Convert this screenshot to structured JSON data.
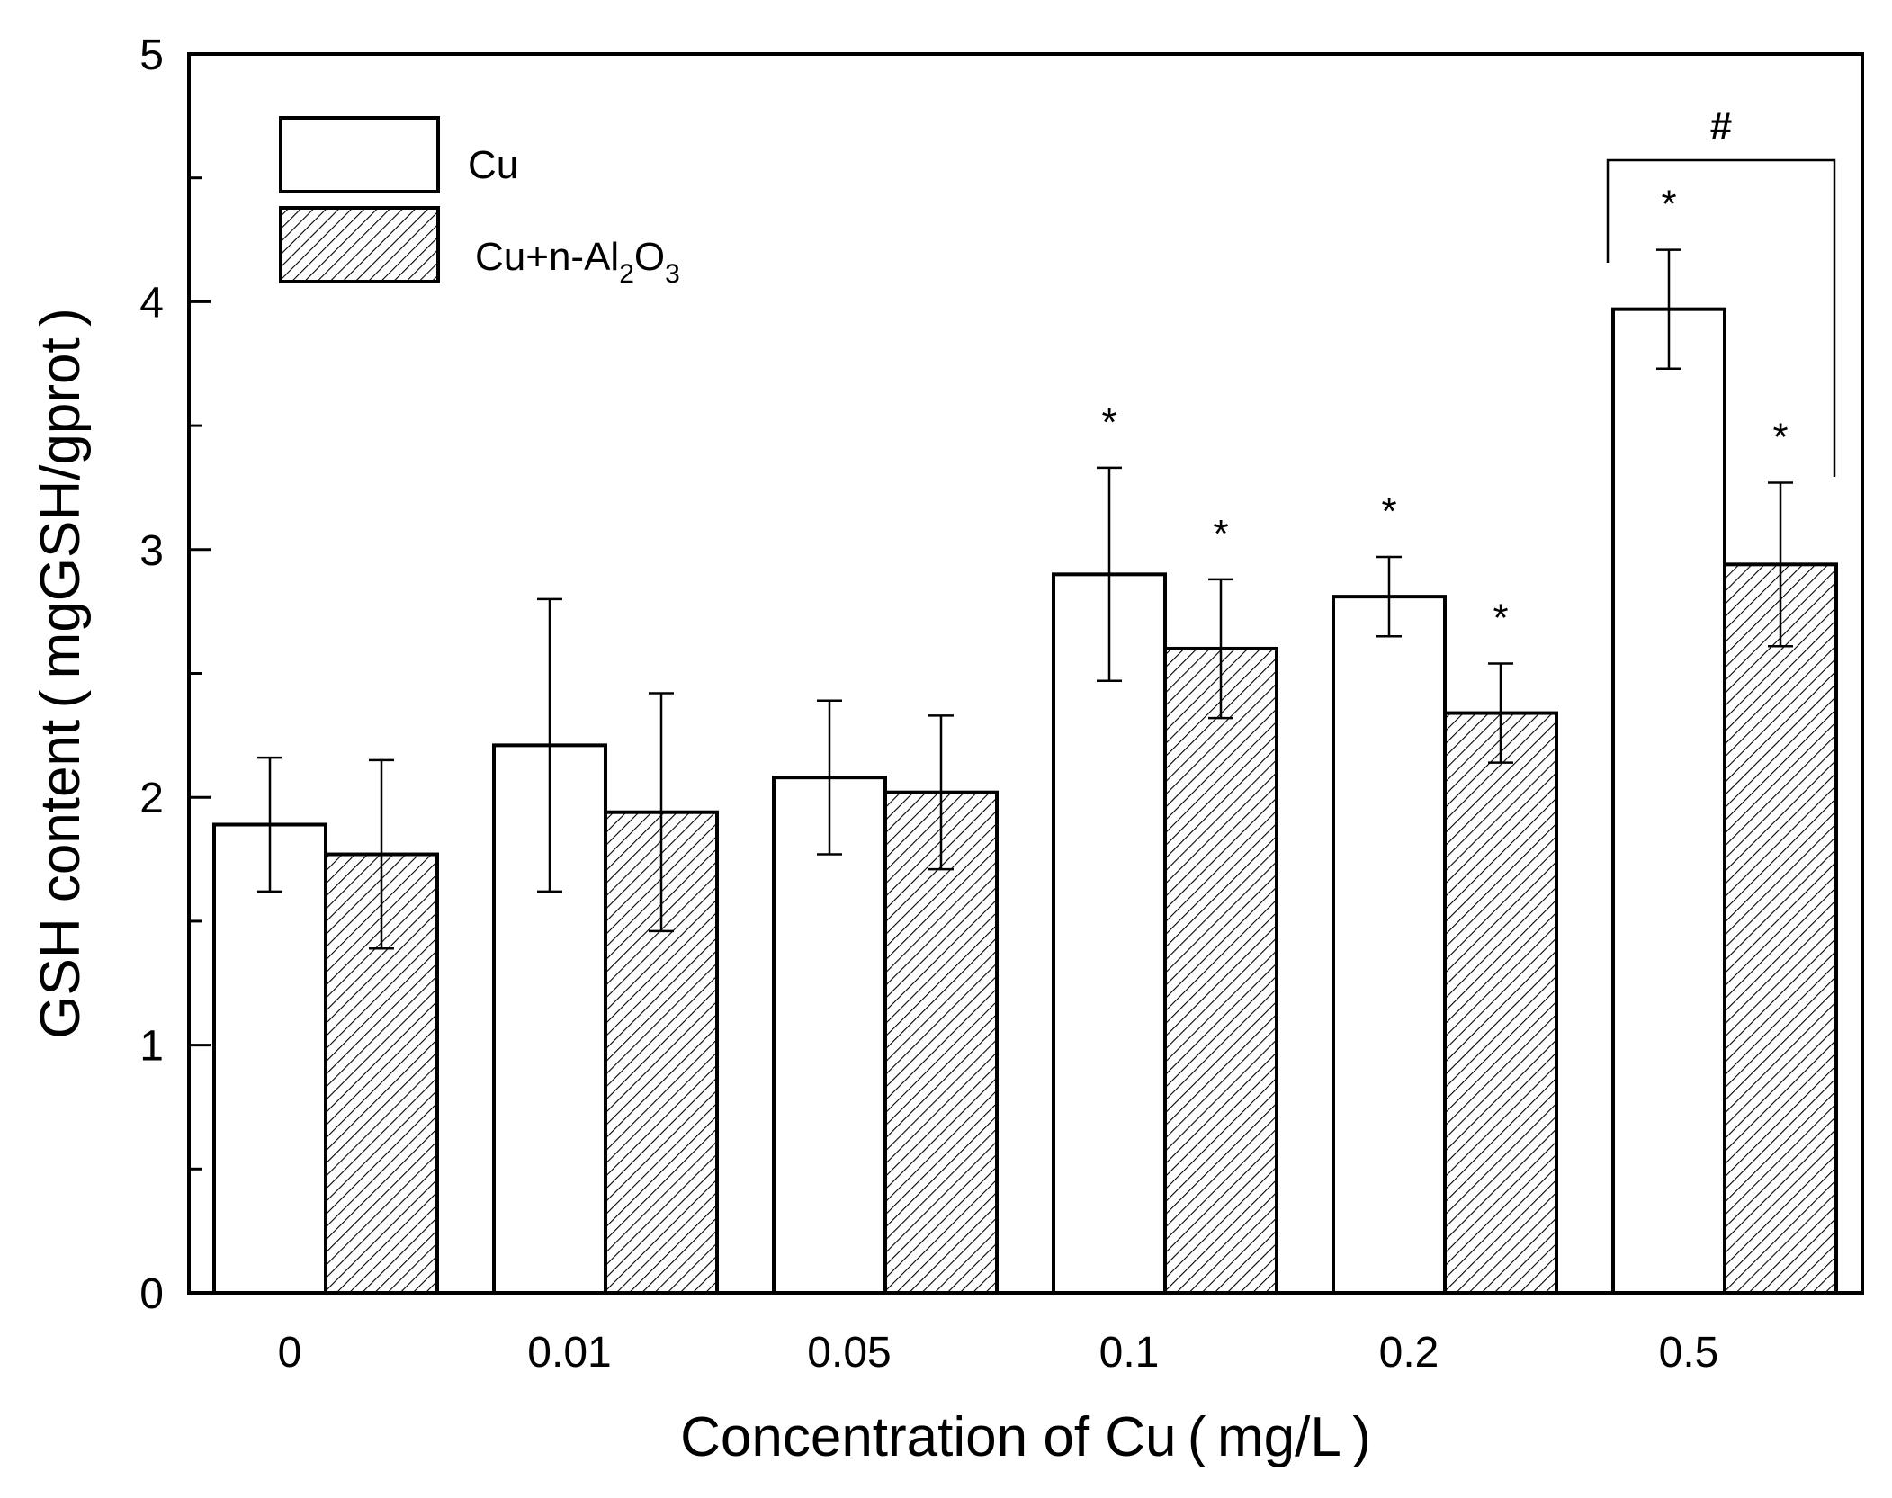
{
  "chart_data": {
    "type": "bar",
    "title": "",
    "xlabel": "Concentration of Cu ( mg/L )",
    "ylabel": "GSH content ( mgGSH/gprot )",
    "ylim": [
      0,
      5
    ],
    "yticks": [
      "0",
      "1",
      "2",
      "3",
      "4",
      "5"
    ],
    "categories": [
      "0",
      "0.01",
      "0.05",
      "0.1",
      "0.2",
      "0.5"
    ],
    "series": [
      {
        "name": "Cu",
        "legend_label": "Cu",
        "fill": "white",
        "values": [
          1.89,
          2.21,
          2.08,
          2.9,
          2.81,
          3.97
        ],
        "errors": [
          0.27,
          0.59,
          0.31,
          0.43,
          0.16,
          0.24
        ],
        "significance": [
          "",
          "",
          "",
          "*",
          "*",
          "*"
        ]
      },
      {
        "name": "Cu+n-Al2O3",
        "legend_parts": [
          "Cu+n-Al",
          "2",
          "O",
          "3"
        ],
        "fill": "hatched",
        "values": [
          1.77,
          1.94,
          2.02,
          2.6,
          2.34,
          2.94
        ],
        "errors": [
          0.38,
          0.48,
          0.31,
          0.28,
          0.2,
          0.33
        ],
        "significance": [
          "",
          "",
          "",
          "*",
          "*",
          "*"
        ]
      }
    ],
    "group_comparison": {
      "category": "0.5",
      "label": "#"
    },
    "legend": "top-left",
    "grid": false
  },
  "colors": {
    "axis": "#000000",
    "bar_fill": "#ffffff",
    "hatch": "#000000"
  }
}
